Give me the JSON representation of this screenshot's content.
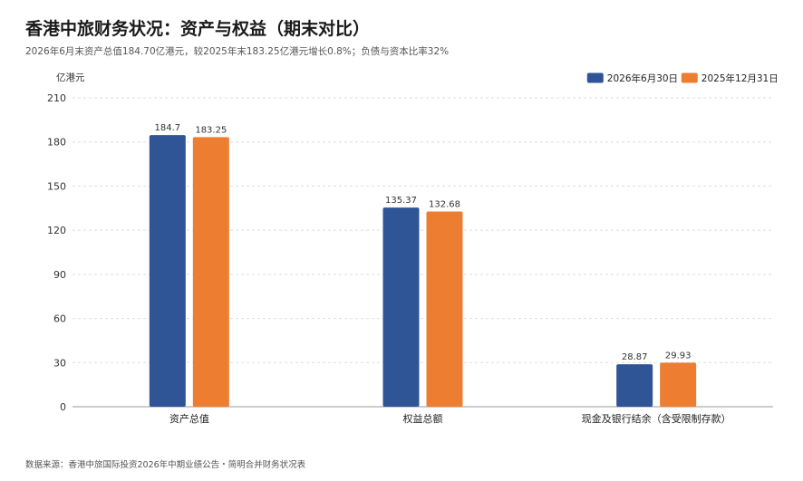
{
  "header": {
    "title": "香港中旅财务状况：资产与权益（期末对比）",
    "subtitle": "2026年6月末资产总值184.70亿港元，较2025年末183.25亿港元增长0.8%；负债与资本比率32%"
  },
  "footer": {
    "source": "数据来源：香港中旅国际投资2026年中期业绩公告・简明合并财务状况表"
  },
  "chart_data": {
    "type": "bar",
    "title": "香港中旅财务状况：资产与权益（期末对比）",
    "ylabel": "亿港元",
    "xlabel": "",
    "ylim": [
      0,
      210
    ],
    "yticks": [
      0,
      30,
      60,
      90,
      120,
      150,
      180,
      210
    ],
    "grid": true,
    "legend_position": "top-right",
    "categories": [
      "资产总值",
      "权益总额",
      "现金及银行结余（含受限制存款）"
    ],
    "series": [
      {
        "name": "2026年6月30日",
        "color": "#2f5597",
        "values": [
          184.7,
          135.37,
          28.87
        ],
        "labels": [
          "184.7",
          "135.37",
          "28.87"
        ]
      },
      {
        "name": "2025年12月31日",
        "color": "#ed7d31",
        "values": [
          183.25,
          132.68,
          29.93
        ],
        "labels": [
          "183.25",
          "132.68",
          "29.93"
        ]
      }
    ]
  }
}
